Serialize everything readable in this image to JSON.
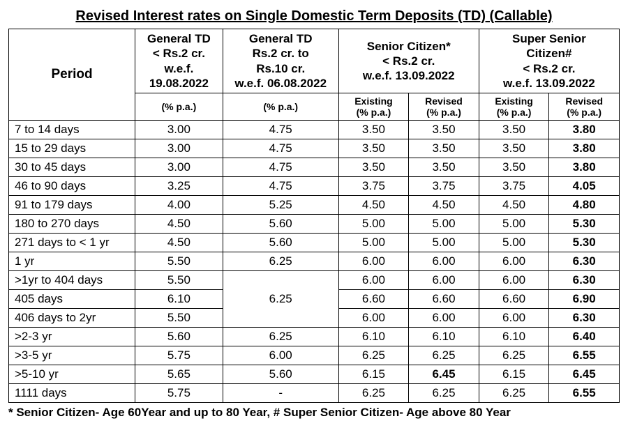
{
  "title": "Revised Interest rates on Single Domestic Term Deposits (TD) (Callable)",
  "columns": {
    "period_label": "Period",
    "g1": {
      "lines": [
        "General TD",
        "< Rs.2 cr.",
        "w.e.f.",
        "19.08.2022"
      ],
      "sub": "(% p.a.)"
    },
    "g2": {
      "lines": [
        "General TD",
        "Rs.2 cr. to",
        "Rs.10 cr.",
        "w.e.f. 06.08.2022"
      ],
      "sub": "(% p.a.)"
    },
    "sc": {
      "lines": [
        "Senior Citizen*",
        "< Rs.2 cr.",
        "w.e.f. 13.09.2022"
      ],
      "sub_existing": "Existing (% p.a.)",
      "sub_revised": "Revised (% p.a.)"
    },
    "ssc": {
      "lines": [
        "Super Senior",
        "Citizen#",
        "< Rs.2 cr.",
        "w.e.f. 13.09.2022"
      ],
      "sub_existing": "Existing (% p.a.)",
      "sub_revised": "Revised (% p.a.)"
    }
  },
  "rows": [
    {
      "period": "7 to 14 days",
      "g1": "3.00",
      "g2": "4.75",
      "sc_e": "3.50",
      "sc_r": "3.50",
      "ssc_e": "3.50",
      "ssc_r": "3.80"
    },
    {
      "period": "15 to 29 days",
      "g1": "3.00",
      "g2": "4.75",
      "sc_e": "3.50",
      "sc_r": "3.50",
      "ssc_e": "3.50",
      "ssc_r": "3.80"
    },
    {
      "period": "30 to 45 days",
      "g1": "3.00",
      "g2": "4.75",
      "sc_e": "3.50",
      "sc_r": "3.50",
      "ssc_e": "3.50",
      "ssc_r": "3.80"
    },
    {
      "period": "46 to 90 days",
      "g1": "3.25",
      "g2": "4.75",
      "sc_e": "3.75",
      "sc_r": "3.75",
      "ssc_e": "3.75",
      "ssc_r": "4.05"
    },
    {
      "period": "91 to 179 days",
      "g1": "4.00",
      "g2": "5.25",
      "sc_e": "4.50",
      "sc_r": "4.50",
      "ssc_e": "4.50",
      "ssc_r": "4.80"
    },
    {
      "period": "180  to  270 days",
      "g1": "4.50",
      "g2": "5.60",
      "sc_e": "5.00",
      "sc_r": "5.00",
      "ssc_e": "5.00",
      "ssc_r": "5.30"
    },
    {
      "period": "271 days to  < 1 yr",
      "g1": "4.50",
      "g2": "5.60",
      "sc_e": "5.00",
      "sc_r": "5.00",
      "ssc_e": "5.00",
      "ssc_r": "5.30"
    },
    {
      "period": "1 yr",
      "g1": "5.50",
      "g2": "6.25",
      "sc_e": "6.00",
      "sc_r": "6.00",
      "ssc_e": "6.00",
      "ssc_r": "6.30"
    },
    {
      "period": ">1yr to 404 days",
      "g1": "5.50",
      "g2": "",
      "sc_e": "6.00",
      "sc_r": "6.00",
      "ssc_e": "6.00",
      "ssc_r": "6.30",
      "g2_merge_start": true
    },
    {
      "period": "405 days",
      "g1": "6.10",
      "g2": "6.25",
      "sc_e": "6.60",
      "sc_r": "6.60",
      "ssc_e": "6.60",
      "ssc_r": "6.90",
      "g2_in_merge": true
    },
    {
      "period": "406 days to 2yr",
      "g1": "5.50",
      "g2": "",
      "sc_e": "6.00",
      "sc_r": "6.00",
      "ssc_e": "6.00",
      "ssc_r": "6.30",
      "g2_in_merge": true
    },
    {
      "period": ">2-3 yr",
      "g1": "5.60",
      "g2": "6.25",
      "sc_e": "6.10",
      "sc_r": "6.10",
      "ssc_e": "6.10",
      "ssc_r": "6.40"
    },
    {
      "period": ">3-5 yr",
      "g1": "5.75",
      "g2": "6.00",
      "sc_e": "6.25",
      "sc_r": "6.25",
      "ssc_e": "6.25",
      "ssc_r": "6.55"
    },
    {
      "period": ">5-10 yr",
      "g1": "5.65",
      "g2": "5.60",
      "sc_e": "6.15",
      "sc_r": "6.45",
      "ssc_e": "6.15",
      "ssc_r": "6.45",
      "sc_r_bold": true
    },
    {
      "period": "1111 days",
      "g1": "5.75",
      "g2": "-",
      "sc_e": "6.25",
      "sc_r": "6.25",
      "ssc_e": "6.25",
      "ssc_r": "6.55"
    }
  ],
  "footnote": "* Senior Citizen- Age 60Year and up to 80 Year, # Super Senior Citizen- Age above 80 Year",
  "styling": {
    "background_color": "#ffffff",
    "text_color": "#000000",
    "border_color": "#000000",
    "title_fontsize": 20,
    "header_fontsize": 17,
    "cell_fontsize": 17,
    "sub_fontsize": 14,
    "font_family": "Arial"
  }
}
